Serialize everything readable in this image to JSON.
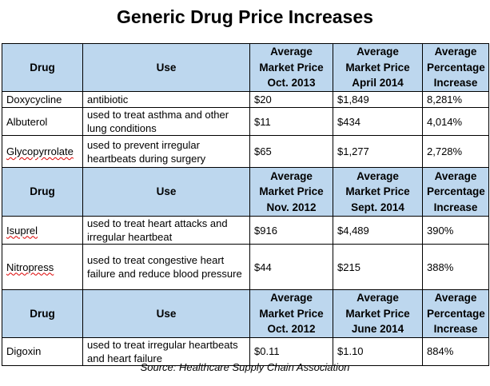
{
  "title": "Generic Drug Price Increases",
  "sections": [
    {
      "headers": [
        "Drug",
        "Use",
        "Average Market Price Oct. 2013",
        "Average Market Price April 2014",
        "Average Percentage Increase"
      ],
      "header_lines": [
        [
          "Drug"
        ],
        [
          "Use"
        ],
        [
          "Average",
          "Market Price",
          "Oct. 2013"
        ],
        [
          "Average",
          "Market Price",
          "April 2014"
        ],
        [
          "Average",
          "Percentage",
          "Increase"
        ]
      ],
      "rows": [
        {
          "drug": "Doxycycline",
          "use": "antibiotic",
          "price_start": "$20",
          "price_end": "$1,849",
          "increase": "8,281%"
        },
        {
          "drug": "Albuterol",
          "use": "used to treat asthma and other lung conditions",
          "price_start": "$11",
          "price_end": "$434",
          "increase": "4,014%"
        },
        {
          "drug": "Glycopyrrolate",
          "use": "used to prevent irregular heartbeats during surgery",
          "price_start": "$65",
          "price_end": "$1,277",
          "increase": "2,728%"
        }
      ]
    },
    {
      "header_lines": [
        [
          "Drug"
        ],
        [
          "Use"
        ],
        [
          "Average",
          "Market Price",
          "Nov. 2012"
        ],
        [
          "Average",
          "Market Price",
          "Sept. 2014"
        ],
        [
          "Average",
          "Percentage",
          "Increase"
        ]
      ],
      "rows": [
        {
          "drug": "Isuprel",
          "use": "used to treat heart attacks and irregular heartbeat",
          "price_start": "$916",
          "price_end": "$4,489",
          "increase": "390%"
        },
        {
          "drug": "Nitropress",
          "use": "used to treat congestive heart failure and reduce blood pressure",
          "price_start": "$44",
          "price_end": "$215",
          "increase": "388%"
        }
      ]
    },
    {
      "header_lines": [
        [
          "Drug"
        ],
        [
          "Use"
        ],
        [
          "Average",
          "Market Price",
          "Oct. 2012"
        ],
        [
          "Average",
          "Market Price",
          "June 2014"
        ],
        [
          "Average",
          "Percentage",
          "Increase"
        ]
      ],
      "rows": [
        {
          "drug": "Digoxin",
          "use": "used to treat irregular heartbeats and heart failure",
          "price_start": "$0.11",
          "price_end": "$1.10",
          "increase": "884%"
        }
      ]
    }
  ],
  "source": "Source: Healthcare Supply Chain Association",
  "colors": {
    "header_fill": "#BDD7EE",
    "spellcheck_underline": "#dd0000"
  }
}
